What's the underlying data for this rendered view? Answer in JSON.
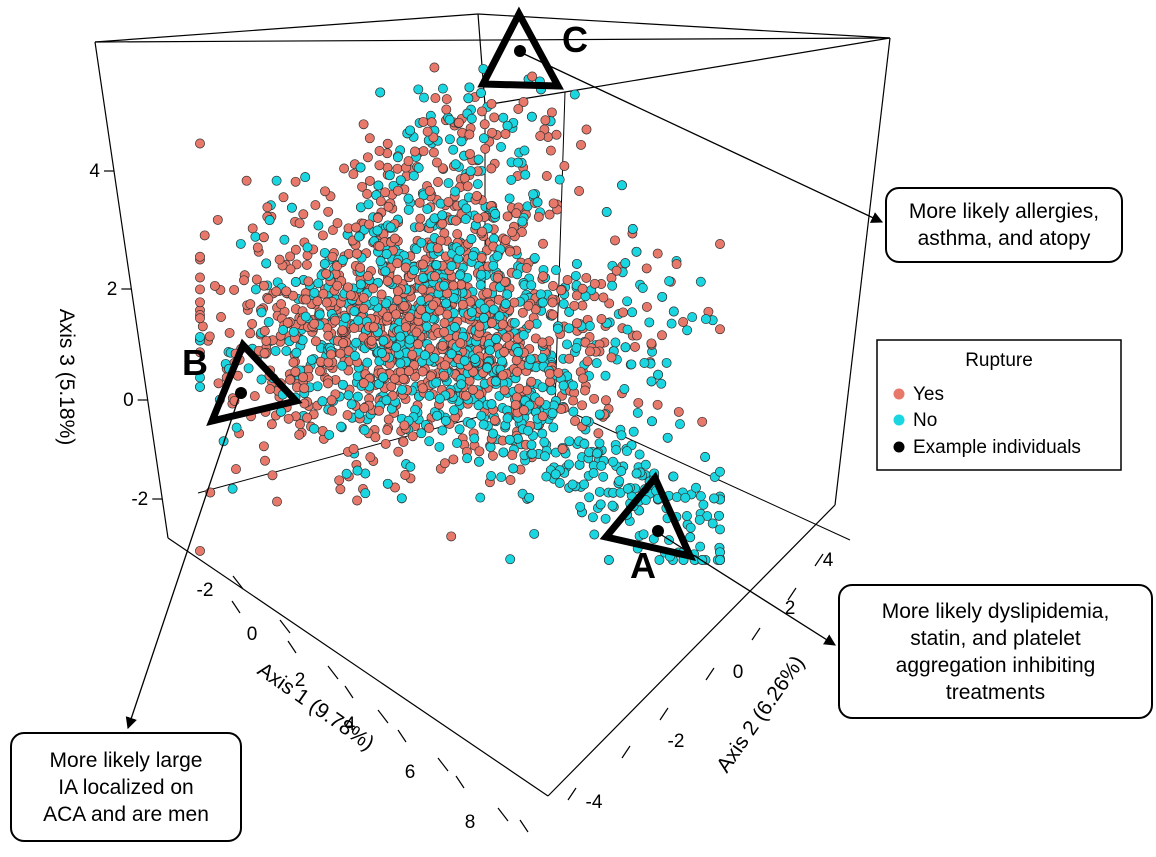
{
  "chart_data": {
    "type": "scatter",
    "dimensions": 3,
    "xlabel": "Axis 1 (9.78%)",
    "ylabel": "Axis 2 (6.26%)",
    "zlabel": "Axis 3 (5.18%)",
    "x_ticks": [
      "-2",
      "0",
      "2",
      "4",
      "6",
      "8"
    ],
    "y_ticks": [
      "-4",
      "-2",
      "0",
      "2",
      "4"
    ],
    "z_ticks": [
      "-2",
      "0",
      "2",
      "4"
    ],
    "xlim": [
      -3,
      9
    ],
    "ylim": [
      -5,
      5
    ],
    "zlim": [
      -3,
      5
    ],
    "grid": false,
    "legend": {
      "title": "Rupture",
      "placement": "right",
      "entries": [
        {
          "label": "Yes",
          "color": "#e8786a"
        },
        {
          "label": "No",
          "color": "#1ad6e0"
        },
        {
          "label": "Example individuals",
          "color": "#000000"
        }
      ]
    },
    "series": [
      {
        "name": "Yes",
        "color": "#e8786a",
        "approx_count": 1100,
        "x_center": 0.5,
        "y_center": 0.8,
        "z_center": 0.6
      },
      {
        "name": "No",
        "color": "#1ad6e0",
        "approx_count": 1300,
        "x_center": 1.2,
        "y_center": 1.3,
        "z_center": 0.7
      }
    ],
    "example_individuals": [
      {
        "label": "A",
        "note": "More likely dyslipidemia,\nstatin, and platelet\naggregation inhibiting\ntreatments"
      },
      {
        "label": "B",
        "note": "More likely large\nIA localized on\nACA and are men"
      },
      {
        "label": "C",
        "note": "More likely allergies,\nasthma, and atopy"
      }
    ]
  }
}
